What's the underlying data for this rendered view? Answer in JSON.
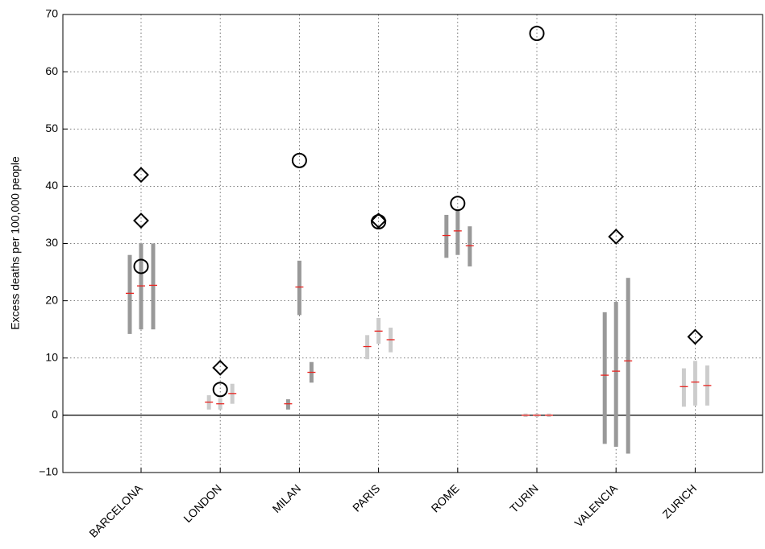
{
  "chart_data": {
    "type": "range",
    "y_label": "Excess deaths per 100,000 people",
    "categories": [
      "BARCELONA",
      "LONDON",
      "MILAN",
      "PARIS",
      "ROME",
      "TURIN",
      "VALENCIA",
      "ZURICH"
    ],
    "bar_colors": [
      "#999999",
      "#cccccc",
      "#999999",
      "#cccccc",
      "#999999",
      "#cccccc",
      "#999999",
      "#cccccc"
    ],
    "median_color": "#e8231f",
    "ranges": [
      {
        "low": [
          14.2,
          1.0,
          1.0,
          9.8,
          27.5,
          -0.3,
          -5.0,
          1.5
        ],
        "median": [
          21.3,
          2.3,
          2.0,
          12.0,
          31.4,
          0,
          7.0,
          5.0
        ],
        "high": [
          28.0,
          3.5,
          2.8,
          14.0,
          35.0,
          0.3,
          18.0,
          8.2
        ]
      },
      {
        "low": [
          15.0,
          1.0,
          17.5,
          12.5,
          28.0,
          -0.3,
          -5.5,
          1.7
        ],
        "median": [
          22.6,
          2.0,
          22.4,
          14.7,
          32.2,
          0,
          7.7,
          5.8
        ],
        "high": [
          30.0,
          3.0,
          27.0,
          17.0,
          36.0,
          0.3,
          19.8,
          9.5
        ]
      },
      {
        "low": [
          15.0,
          2.0,
          5.7,
          11.0,
          26.0,
          -0.3,
          -6.7,
          1.7
        ],
        "median": [
          22.7,
          3.8,
          7.5,
          13.2,
          29.6,
          0,
          9.5,
          5.2
        ],
        "high": [
          30.0,
          5.5,
          9.3,
          15.3,
          33.0,
          0.3,
          24.0,
          8.7
        ]
      }
    ],
    "markers": [
      {
        "shape": "diamond",
        "values": [
          42,
          8.3,
          null,
          34,
          null,
          null,
          31.2,
          13.7
        ]
      },
      {
        "shape": "diamond",
        "values": [
          34,
          null,
          null,
          null,
          null,
          null,
          null,
          null
        ]
      },
      {
        "shape": "circle",
        "values": [
          26,
          4.5,
          44.5,
          33.8,
          37,
          66.7,
          null,
          null
        ]
      }
    ],
    "ylim": [
      -10,
      70
    ],
    "yticks": [
      {
        "value": -10,
        "label": "−10"
      },
      0,
      10,
      20,
      30,
      40,
      50,
      60,
      70
    ],
    "grid": true
  }
}
